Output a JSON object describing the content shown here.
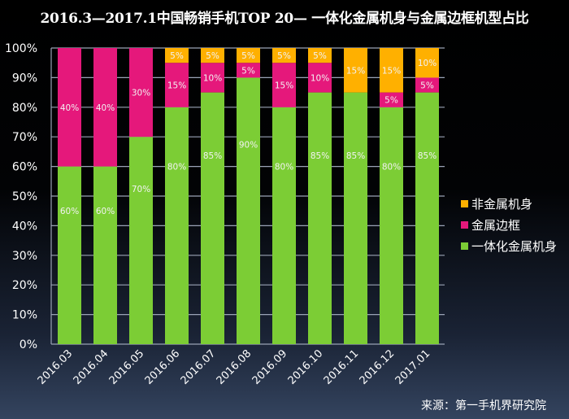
{
  "chart_data": {
    "type": "bar",
    "stacked": true,
    "title": "2016.3—2017.1中国畅销手机TOP 20— 一体化金属机身与金属边框机型占比",
    "categories": [
      "2016.03",
      "2016.04",
      "2016.05",
      "2016.06",
      "2016.07",
      "2016.08",
      "2016.09",
      "2016.10",
      "2016.11",
      "2016.12",
      "2017.01"
    ],
    "series": [
      {
        "name": "一体化金属机身",
        "color": "#7ccd35",
        "values": [
          60,
          60,
          70,
          80,
          85,
          90,
          80,
          85,
          85,
          80,
          85
        ]
      },
      {
        "name": "金属边框",
        "color": "#e5187b",
        "values": [
          40,
          40,
          30,
          15,
          10,
          5,
          15,
          10,
          0,
          5,
          5
        ]
      },
      {
        "name": "非金属机身",
        "color": "#ffb000",
        "values": [
          0,
          0,
          0,
          5,
          5,
          5,
          5,
          5,
          15,
          15,
          10
        ]
      }
    ],
    "ylim": [
      0,
      100
    ],
    "yticks": [
      "0%",
      "10%",
      "20%",
      "30%",
      "40%",
      "50%",
      "60%",
      "70%",
      "80%",
      "90%",
      "100%"
    ],
    "xlabel": "",
    "ylabel": "",
    "grid": true,
    "legend": "right"
  },
  "source": "来源：第一手机界研究院"
}
